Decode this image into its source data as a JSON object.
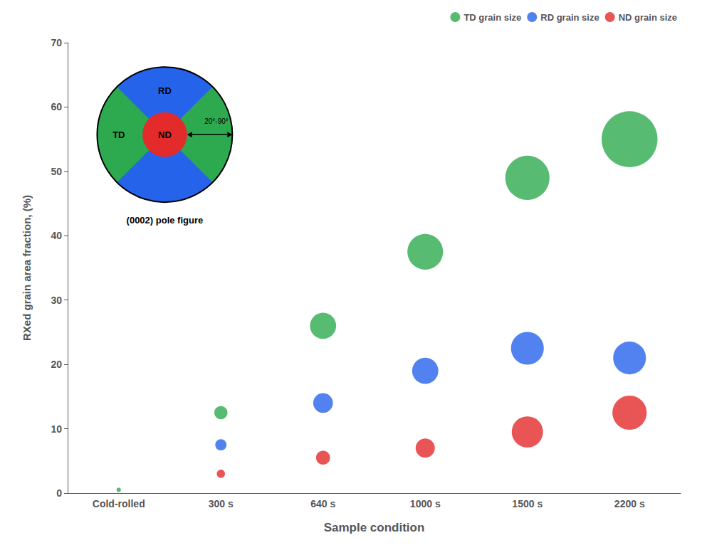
{
  "chart_data": {
    "type": "scatter",
    "categories": [
      "Cold-rolled",
      "300 s",
      "640 s",
      "1000 s",
      "1500 s",
      "2200 s"
    ],
    "series": [
      {
        "name": "TD grain size",
        "color": "#2daa4f",
        "values": [
          0.5,
          12.5,
          26.0,
          37.5,
          49.0,
          55.0
        ],
        "sizes": [
          20,
          180,
          700,
          1300,
          2000,
          3200
        ]
      },
      {
        "name": "RD grain size",
        "color": "#2563eb",
        "values": [
          null,
          7.5,
          14.0,
          19.0,
          22.5,
          21.0
        ],
        "sizes": [
          null,
          130,
          400,
          700,
          1100,
          1100
        ]
      },
      {
        "name": "ND grain size",
        "color": "#e32b2b",
        "values": [
          null,
          3.0,
          5.5,
          7.0,
          9.5,
          12.5
        ],
        "sizes": [
          null,
          70,
          200,
          380,
          1000,
          1200
        ]
      }
    ],
    "xlabel": "Sample condition",
    "ylabel": "RXed grain area fraction, (%)",
    "ylim": [
      0,
      70
    ],
    "yticks": [
      0,
      10,
      20,
      30,
      40,
      50,
      60,
      70
    ],
    "grid": false,
    "legend": "upper right",
    "annotations": [
      "RD",
      "TD",
      "ND",
      "20°-90°",
      "(0002) pole figure"
    ]
  }
}
